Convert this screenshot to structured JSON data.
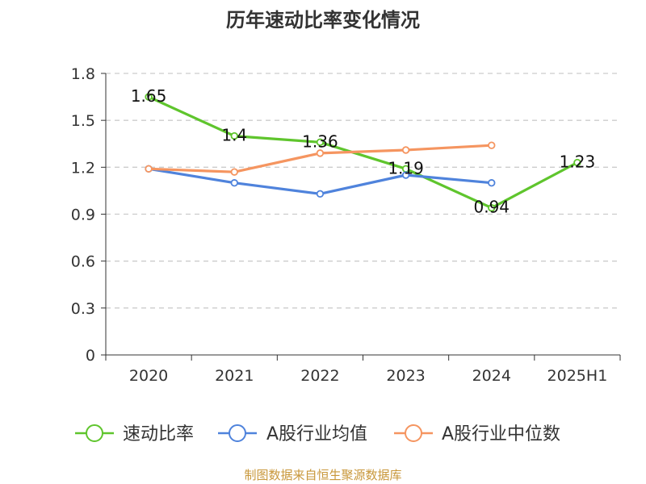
{
  "chart_data": {
    "type": "line",
    "title": "历年速动比率变化情况",
    "categories": [
      "2020",
      "2021",
      "2022",
      "2023",
      "2024",
      "2025H1"
    ],
    "ylim": [
      0,
      1.8
    ],
    "yticks": [
      "0",
      "0.3",
      "0.6",
      "0.9",
      "1.2",
      "1.5",
      "1.8"
    ],
    "grid": true,
    "legend_position": "bottom",
    "series": [
      {
        "name": "速动比率",
        "color": "#5fc52d",
        "values": [
          1.65,
          1.4,
          1.36,
          1.19,
          0.94,
          1.23
        ],
        "labels": [
          "1.65",
          "1.4",
          "1.36",
          "1.19",
          "0.94",
          "1.23"
        ]
      },
      {
        "name": "A股行业均值",
        "color": "#4f83dc",
        "values": [
          1.19,
          1.1,
          1.03,
          1.15,
          1.1,
          null
        ]
      },
      {
        "name": "A股行业中位数",
        "color": "#f59560",
        "values": [
          1.19,
          1.17,
          1.29,
          1.31,
          1.34,
          null
        ]
      }
    ]
  },
  "source_note": "制图数据来自恒生聚源数据库",
  "colors": {
    "axis": "#333333",
    "grid": "#cccccc",
    "source": "#c8973a"
  }
}
